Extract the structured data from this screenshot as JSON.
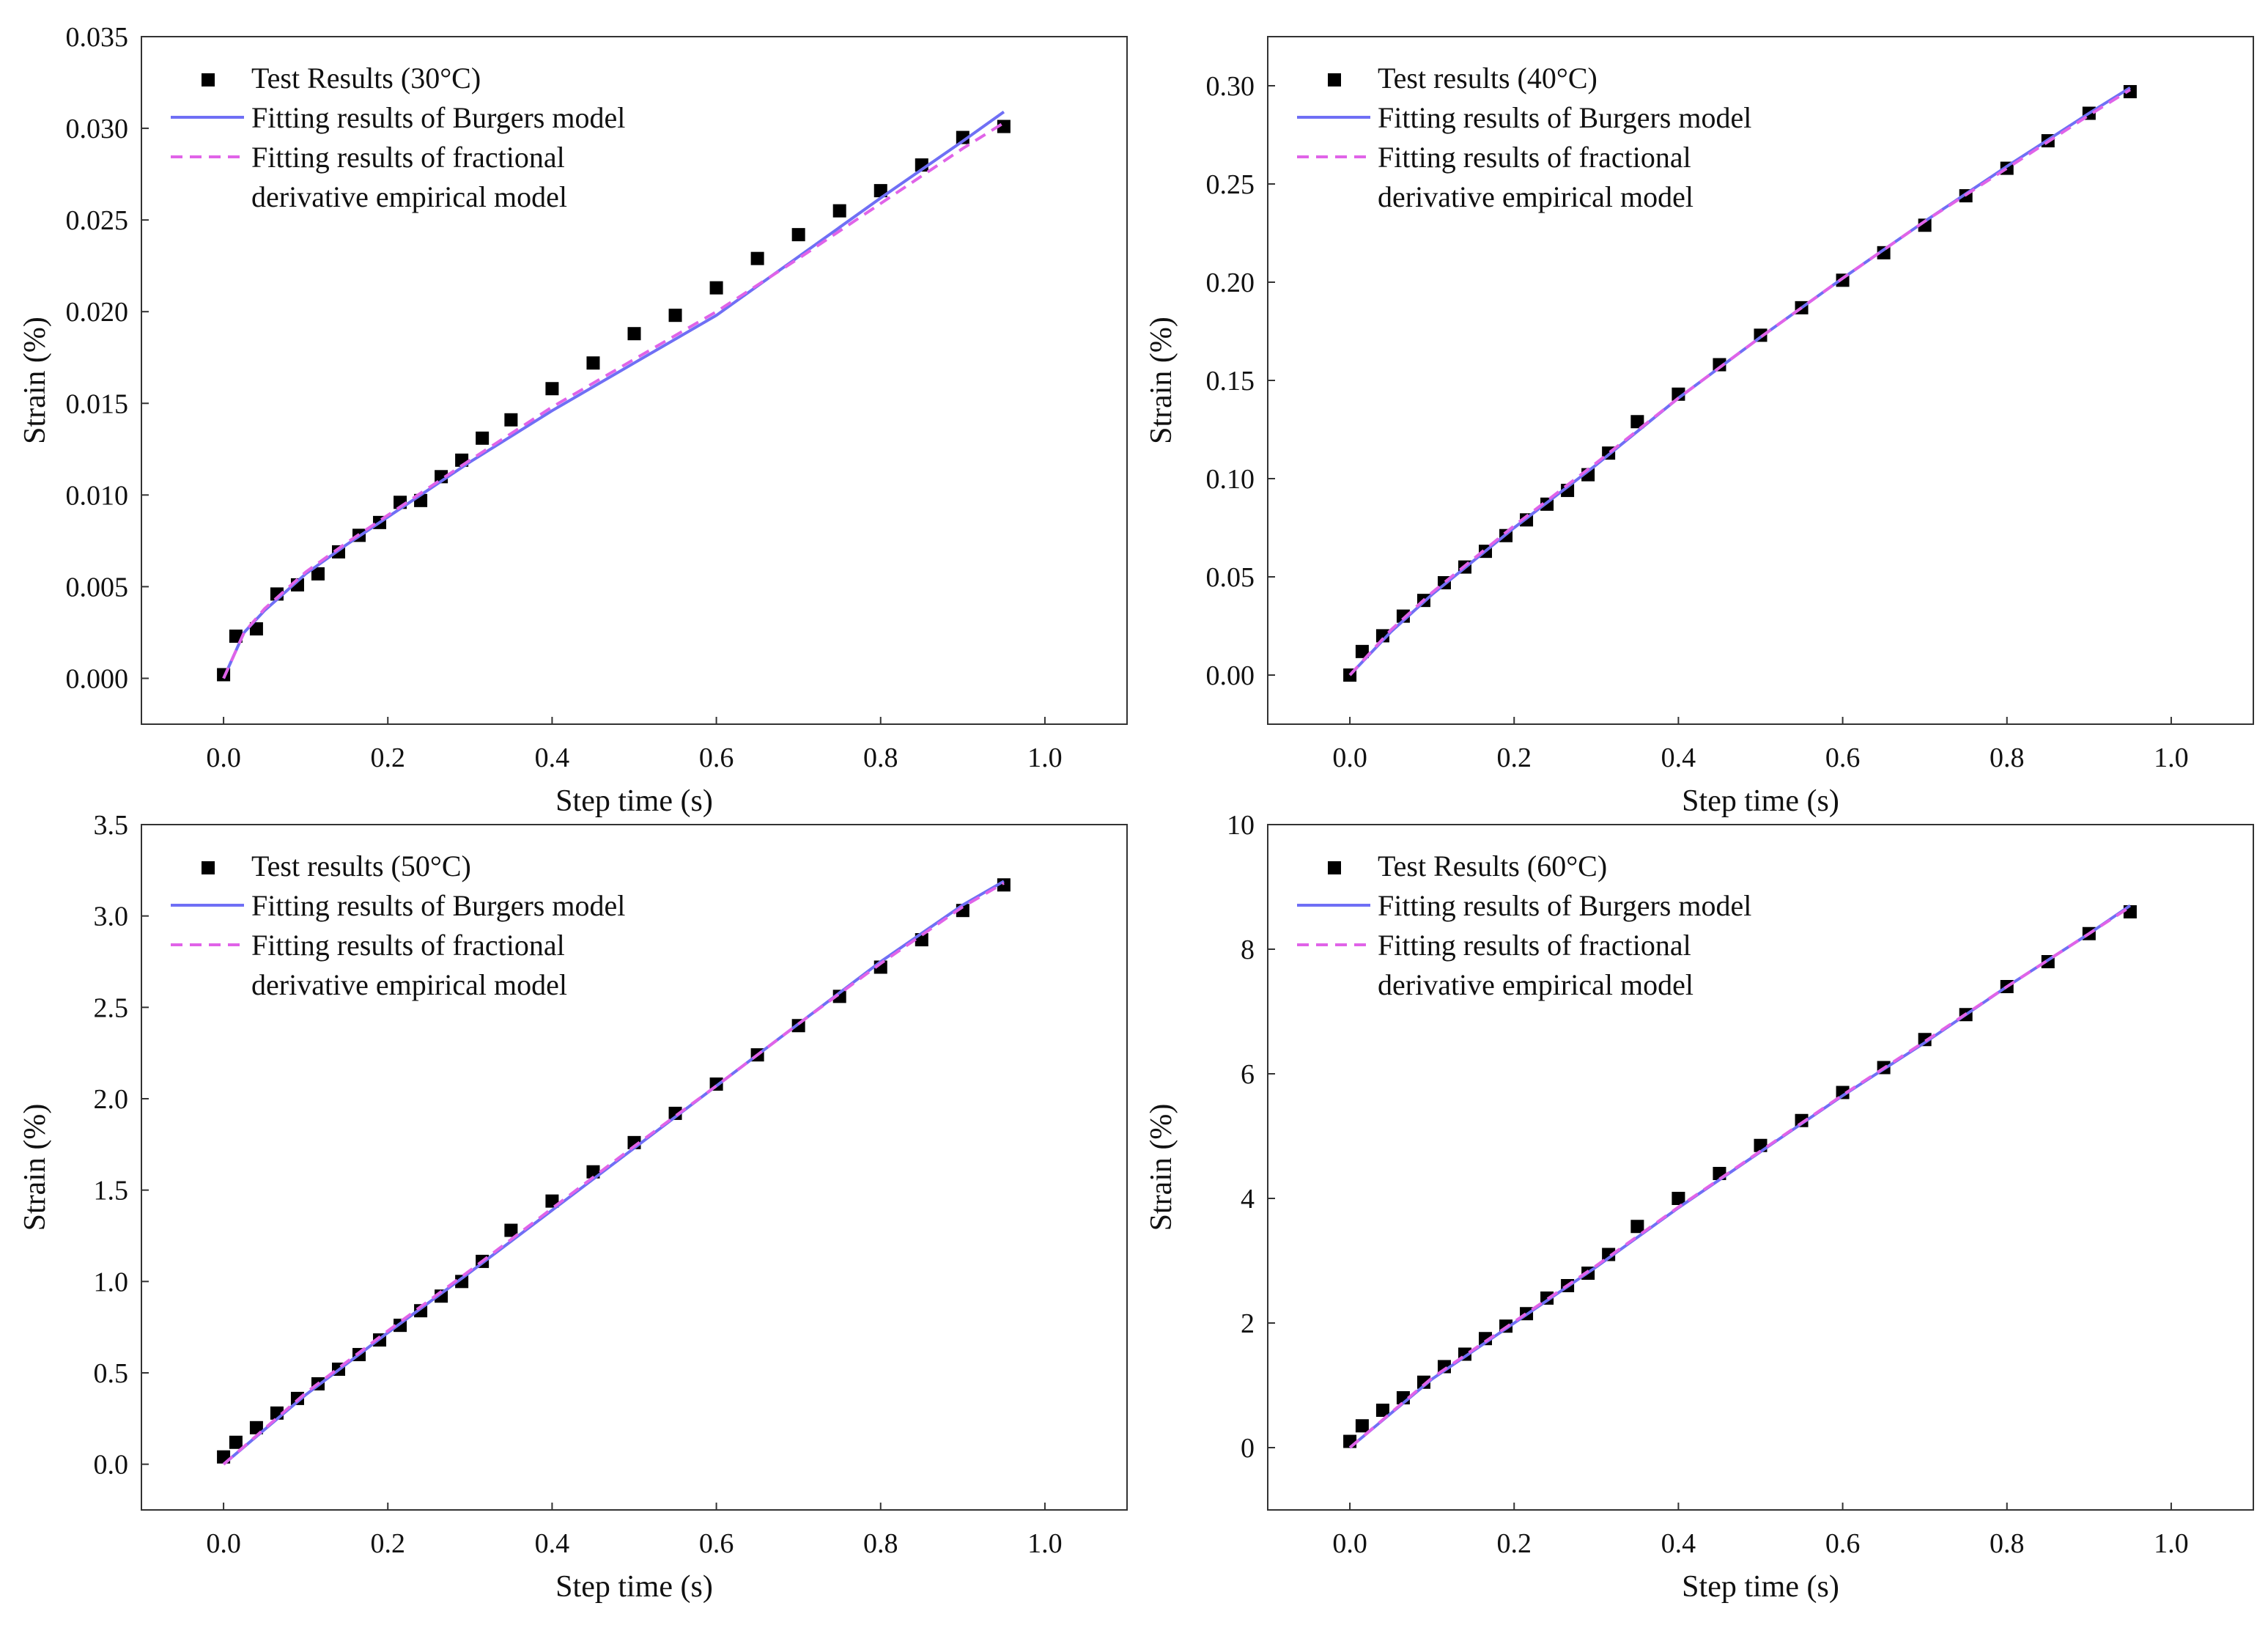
{
  "colors": {
    "markers": "#000000",
    "burgers_line": "#6f6ff5",
    "fractional_line": "#e063e8",
    "axis": "#333333"
  },
  "chart_data": [
    {
      "type": "scatter",
      "title": "",
      "xlabel": "Step time (s)",
      "ylabel": "Strain (%)",
      "xlim": [
        -0.1,
        1.1
      ],
      "ylim": [
        -0.0025,
        0.035
      ],
      "xticks": [
        "0.0",
        "0.2",
        "0.4",
        "0.6",
        "0.8",
        "1.0"
      ],
      "yticks": [
        "0.000",
        "0.005",
        "0.010",
        "0.015",
        "0.020",
        "0.025",
        "0.030",
        "0.035"
      ],
      "legend_position": "top-left",
      "legend": [
        "Test Results (30°C)",
        "Fitting results of Burgers model",
        "Fitting results of fractional",
        "derivative empirical model"
      ],
      "series": [
        {
          "name": "Test Results (30°C)",
          "kind": "marker",
          "x": [
            0.0,
            0.015,
            0.04,
            0.065,
            0.09,
            0.115,
            0.14,
            0.165,
            0.19,
            0.215,
            0.24,
            0.265,
            0.29,
            0.315,
            0.35,
            0.4,
            0.45,
            0.5,
            0.55,
            0.6,
            0.65,
            0.7,
            0.75,
            0.8,
            0.85,
            0.9,
            0.95
          ],
          "y": [
            0.0002,
            0.0023,
            0.0027,
            0.0046,
            0.0051,
            0.0057,
            0.0069,
            0.0078,
            0.0085,
            0.0096,
            0.0097,
            0.011,
            0.0119,
            0.0131,
            0.0141,
            0.0158,
            0.0172,
            0.0188,
            0.0198,
            0.0213,
            0.0229,
            0.0242,
            0.0255,
            0.0266,
            0.028,
            0.0295,
            0.0301
          ]
        },
        {
          "name": "Fitting results of Burgers model",
          "kind": "line",
          "x": [
            0.0,
            0.025,
            0.05,
            0.1,
            0.15,
            0.2,
            0.3,
            0.4,
            0.5,
            0.6,
            0.7,
            0.8,
            0.9,
            0.95
          ],
          "y": [
            0.0,
            0.0025,
            0.0037,
            0.0057,
            0.0073,
            0.0088,
            0.0118,
            0.0146,
            0.0172,
            0.0198,
            0.023,
            0.0262,
            0.0293,
            0.0309
          ]
        },
        {
          "name": "Fitting results of fractional derivative empirical model",
          "kind": "dashed",
          "x": [
            0.0,
            0.025,
            0.05,
            0.1,
            0.15,
            0.2,
            0.3,
            0.4,
            0.5,
            0.6,
            0.7,
            0.8,
            0.9,
            0.95
          ],
          "y": [
            0.0,
            0.0025,
            0.0038,
            0.0058,
            0.0074,
            0.0089,
            0.0119,
            0.0148,
            0.0174,
            0.02,
            0.0229,
            0.0259,
            0.0289,
            0.0303
          ]
        }
      ]
    },
    {
      "type": "scatter",
      "title": "",
      "xlabel": "Step time (s)",
      "ylabel": "Strain (%)",
      "xlim": [
        -0.1,
        1.1
      ],
      "ylim": [
        -0.025,
        0.325
      ],
      "xticks": [
        "0.0",
        "0.2",
        "0.4",
        "0.6",
        "0.8",
        "1.0"
      ],
      "yticks": [
        "0.00",
        "0.05",
        "0.10",
        "0.15",
        "0.20",
        "0.25",
        "0.30"
      ],
      "legend_position": "top-left",
      "legend": [
        "Test results (40°C)",
        "Fitting results of Burgers model",
        "Fitting results of fractional",
        "derivative empirical model"
      ],
      "series": [
        {
          "name": "Test results (40°C)",
          "kind": "marker",
          "x": [
            0.0,
            0.015,
            0.04,
            0.065,
            0.09,
            0.115,
            0.14,
            0.165,
            0.19,
            0.215,
            0.24,
            0.265,
            0.29,
            0.315,
            0.35,
            0.4,
            0.45,
            0.5,
            0.55,
            0.6,
            0.65,
            0.7,
            0.75,
            0.8,
            0.85,
            0.9,
            0.95
          ],
          "y": [
            0.0,
            0.012,
            0.02,
            0.03,
            0.038,
            0.047,
            0.055,
            0.063,
            0.071,
            0.079,
            0.087,
            0.094,
            0.102,
            0.113,
            0.129,
            0.143,
            0.158,
            0.173,
            0.187,
            0.201,
            0.215,
            0.229,
            0.244,
            0.258,
            0.272,
            0.286,
            0.297
          ]
        },
        {
          "name": "Fitting results of Burgers model",
          "kind": "line",
          "x": [
            0.0,
            0.05,
            0.1,
            0.2,
            0.3,
            0.4,
            0.5,
            0.6,
            0.7,
            0.8,
            0.9,
            0.95
          ],
          "y": [
            0.0,
            0.022,
            0.041,
            0.075,
            0.107,
            0.141,
            0.172,
            0.202,
            0.231,
            0.259,
            0.286,
            0.299
          ]
        },
        {
          "name": "Fitting results of fractional derivative empirical model",
          "kind": "dashed",
          "x": [
            0.0,
            0.05,
            0.1,
            0.2,
            0.3,
            0.4,
            0.5,
            0.6,
            0.7,
            0.8,
            0.9,
            0.95
          ],
          "y": [
            0.0,
            0.023,
            0.042,
            0.076,
            0.108,
            0.141,
            0.172,
            0.202,
            0.231,
            0.258,
            0.285,
            0.298
          ]
        }
      ]
    },
    {
      "type": "scatter",
      "title": "",
      "xlabel": "Step time (s)",
      "ylabel": "Strain (%)",
      "xlim": [
        -0.1,
        1.1
      ],
      "ylim": [
        -0.25,
        3.5
      ],
      "xticks": [
        "0.0",
        "0.2",
        "0.4",
        "0.6",
        "0.8",
        "1.0"
      ],
      "yticks": [
        "0.0",
        "0.5",
        "1.0",
        "1.5",
        "2.0",
        "2.5",
        "3.0",
        "3.5"
      ],
      "legend_position": "top-left",
      "legend": [
        "Test results (50°C)",
        "Fitting results of Burgers model",
        "Fitting results of fractional",
        "derivative empirical model"
      ],
      "series": [
        {
          "name": "Test results (50°C)",
          "kind": "marker",
          "x": [
            0.0,
            0.015,
            0.04,
            0.065,
            0.09,
            0.115,
            0.14,
            0.165,
            0.19,
            0.215,
            0.24,
            0.265,
            0.29,
            0.315,
            0.35,
            0.4,
            0.45,
            0.5,
            0.55,
            0.6,
            0.65,
            0.7,
            0.75,
            0.8,
            0.85,
            0.9,
            0.95
          ],
          "y": [
            0.04,
            0.12,
            0.2,
            0.28,
            0.36,
            0.44,
            0.52,
            0.6,
            0.68,
            0.76,
            0.84,
            0.92,
            1.0,
            1.11,
            1.28,
            1.44,
            1.6,
            1.76,
            1.92,
            2.08,
            2.24,
            2.4,
            2.56,
            2.72,
            2.87,
            3.03,
            3.17
          ]
        },
        {
          "name": "Fitting results of Burgers model",
          "kind": "line",
          "x": [
            0.0,
            0.1,
            0.2,
            0.3,
            0.4,
            0.5,
            0.6,
            0.7,
            0.8,
            0.9,
            0.95
          ],
          "y": [
            0.0,
            0.38,
            0.72,
            1.05,
            1.39,
            1.73,
            2.07,
            2.41,
            2.75,
            3.06,
            3.19
          ]
        },
        {
          "name": "Fitting results of fractional derivative empirical model",
          "kind": "dashed",
          "x": [
            0.0,
            0.1,
            0.2,
            0.3,
            0.4,
            0.5,
            0.6,
            0.7,
            0.8,
            0.9,
            0.95
          ],
          "y": [
            0.0,
            0.39,
            0.73,
            1.06,
            1.4,
            1.74,
            2.07,
            2.41,
            2.74,
            3.05,
            3.18
          ]
        }
      ]
    },
    {
      "type": "scatter",
      "title": "",
      "xlabel": "Step time (s)",
      "ylabel": "Strain (%)",
      "xlim": [
        -0.1,
        1.1
      ],
      "ylim": [
        -1,
        10
      ],
      "xticks": [
        "0.0",
        "0.2",
        "0.4",
        "0.6",
        "0.8",
        "1.0"
      ],
      "yticks": [
        "0",
        "2",
        "4",
        "6",
        "8",
        "10"
      ],
      "legend_position": "top-left",
      "legend": [
        "Test Results (60°C)",
        "Fitting results of Burgers model",
        "Fitting results of fractional",
        "derivative empirical model"
      ],
      "series": [
        {
          "name": "Test Results (60°C)",
          "kind": "marker",
          "x": [
            0.0,
            0.015,
            0.04,
            0.065,
            0.09,
            0.115,
            0.14,
            0.165,
            0.19,
            0.215,
            0.24,
            0.265,
            0.29,
            0.315,
            0.35,
            0.4,
            0.45,
            0.5,
            0.55,
            0.6,
            0.65,
            0.7,
            0.75,
            0.8,
            0.85,
            0.9,
            0.95
          ],
          "y": [
            0.1,
            0.35,
            0.6,
            0.8,
            1.05,
            1.3,
            1.5,
            1.75,
            1.95,
            2.15,
            2.4,
            2.6,
            2.8,
            3.1,
            3.55,
            4.0,
            4.4,
            4.85,
            5.25,
            5.7,
            6.1,
            6.55,
            6.95,
            7.4,
            7.8,
            8.25,
            8.6
          ]
        },
        {
          "name": "Fitting results of Burgers model",
          "kind": "line",
          "x": [
            0.0,
            0.1,
            0.2,
            0.3,
            0.4,
            0.5,
            0.6,
            0.7,
            0.8,
            0.9,
            0.95
          ],
          "y": [
            0.0,
            1.1,
            2.0,
            2.9,
            3.85,
            4.75,
            5.65,
            6.5,
            7.4,
            8.25,
            8.7
          ]
        },
        {
          "name": "Fitting results of fractional derivative empirical model",
          "kind": "dashed",
          "x": [
            0.0,
            0.1,
            0.2,
            0.3,
            0.4,
            0.5,
            0.6,
            0.7,
            0.8,
            0.9,
            0.95
          ],
          "y": [
            0.0,
            1.12,
            2.02,
            2.92,
            3.86,
            4.76,
            5.66,
            6.52,
            7.4,
            8.25,
            8.68
          ]
        }
      ]
    }
  ]
}
